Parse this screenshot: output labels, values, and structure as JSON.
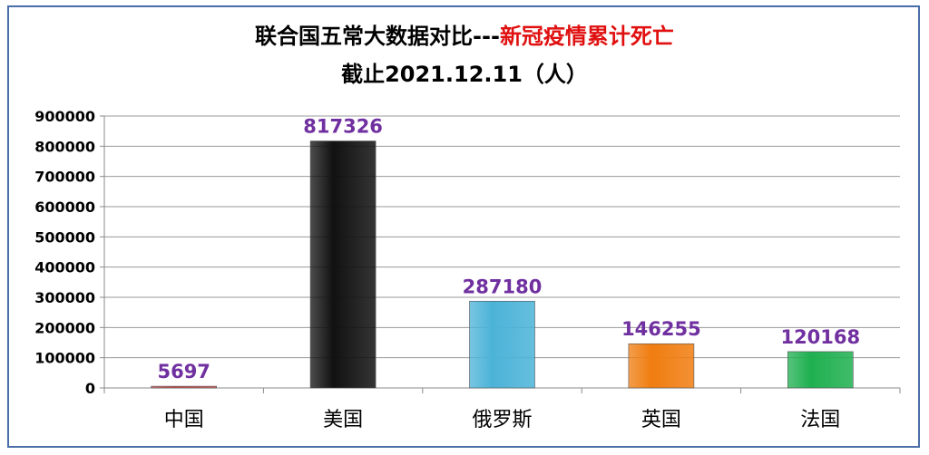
{
  "chart_data": {
    "type": "bar",
    "title_main": "联合国五常大数据对比---",
    "title_highlight": "新冠疫情累计死亡",
    "subtitle": "截止2021.12.11（人）",
    "categories": [
      "中国",
      "美国",
      "俄罗斯",
      "英国",
      "法国"
    ],
    "values": [
      5697,
      817326,
      287180,
      146255,
      120168
    ],
    "data_labels": [
      "5697",
      "817326",
      "287180",
      "146255",
      "120168"
    ],
    "colors": [
      "#c0504d",
      "#111111",
      "#4bb3d8",
      "#f07d10",
      "#1fb050"
    ],
    "ylim": [
      0,
      900000
    ],
    "yticks": [
      0,
      100000,
      200000,
      300000,
      400000,
      500000,
      600000,
      700000,
      800000,
      900000
    ],
    "ytick_labels": [
      "0",
      "100000",
      "200000",
      "300000",
      "400000",
      "500000",
      "600000",
      "700000",
      "800000",
      "900000"
    ],
    "grid": true,
    "legend": "none",
    "label_color": "#7030a0"
  }
}
